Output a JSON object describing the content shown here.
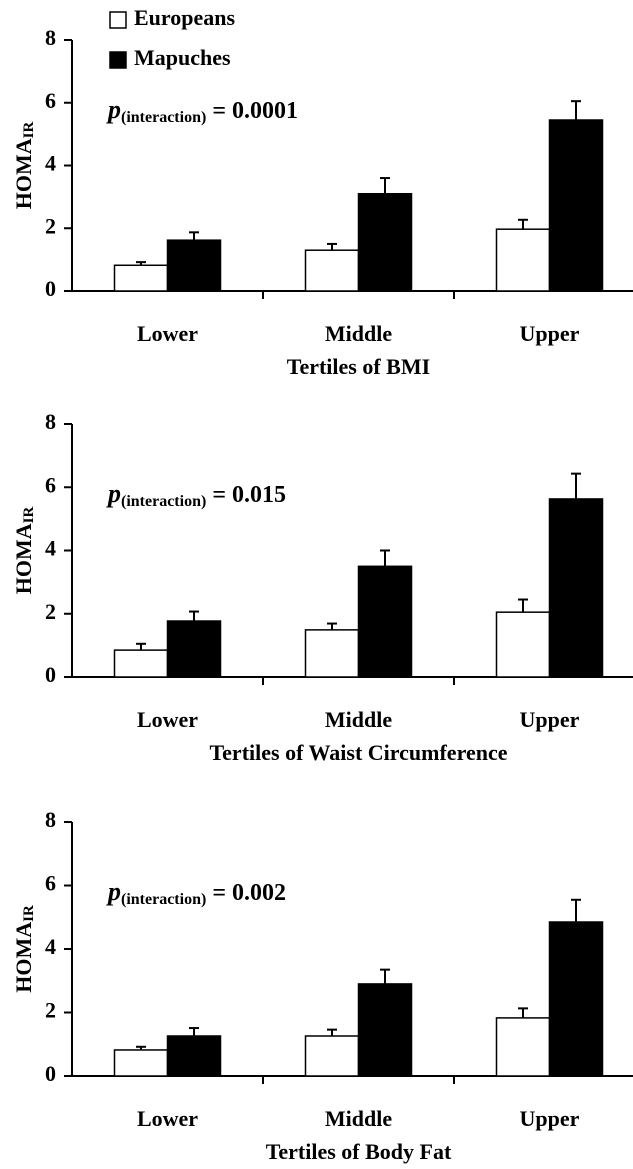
{
  "chart_data": [
    {
      "type": "bar",
      "legend": "top-left",
      "annotation": {
        "symbol": "p",
        "subscript": "(interaction)",
        "text": "= 0.0001"
      },
      "y_label": {
        "text": "HOMA",
        "subscript": "IR"
      },
      "x_label": "Tertiles of BMI",
      "categories": [
        "Lower",
        "Middle",
        "Upper"
      ],
      "series": [
        {
          "name": "Europeans",
          "color": "#ffffff",
          "values": [
            0.82,
            1.3,
            1.97
          ],
          "errors": [
            0.1,
            0.2,
            0.3
          ]
        },
        {
          "name": "Mapuches",
          "color": "#000000",
          "values": [
            1.62,
            3.1,
            5.45
          ],
          "errors": [
            0.25,
            0.5,
            0.6
          ]
        }
      ],
      "ylim": [
        0,
        8
      ],
      "yticks": [
        0,
        2,
        4,
        6,
        8
      ]
    },
    {
      "type": "bar",
      "annotation": {
        "symbol": "p",
        "subscript": "(interaction)",
        "text": "= 0.015"
      },
      "y_label": {
        "text": "HOMA",
        "subscript": "IR"
      },
      "x_label": "Tertiles of Waist Circumference",
      "categories": [
        "Lower",
        "Middle",
        "Upper"
      ],
      "series": [
        {
          "color": "#ffffff",
          "values": [
            0.85,
            1.49,
            2.05
          ],
          "errors": [
            0.2,
            0.2,
            0.4
          ]
        },
        {
          "color": "#000000",
          "values": [
            1.77,
            3.5,
            5.63
          ],
          "errors": [
            0.3,
            0.5,
            0.8
          ]
        }
      ],
      "ylim": [
        0,
        8
      ],
      "yticks": [
        0,
        2,
        4,
        6,
        8
      ]
    },
    {
      "type": "bar",
      "annotation": {
        "symbol": "p",
        "subscript": "(interaction)",
        "text": "= 0.002"
      },
      "y_label": {
        "text": "HOMA",
        "subscript": "IR"
      },
      "x_label": "Tertiles of Body Fat",
      "categories": [
        "Lower",
        "Middle",
        "Upper"
      ],
      "series": [
        {
          "color": "#ffffff",
          "values": [
            0.82,
            1.26,
            1.83
          ],
          "errors": [
            0.1,
            0.2,
            0.3
          ]
        },
        {
          "color": "#000000",
          "values": [
            1.26,
            2.9,
            4.85
          ],
          "errors": [
            0.25,
            0.45,
            0.7
          ]
        }
      ],
      "ylim": [
        0,
        8
      ],
      "yticks": [
        0,
        2,
        4,
        6,
        8
      ]
    }
  ]
}
